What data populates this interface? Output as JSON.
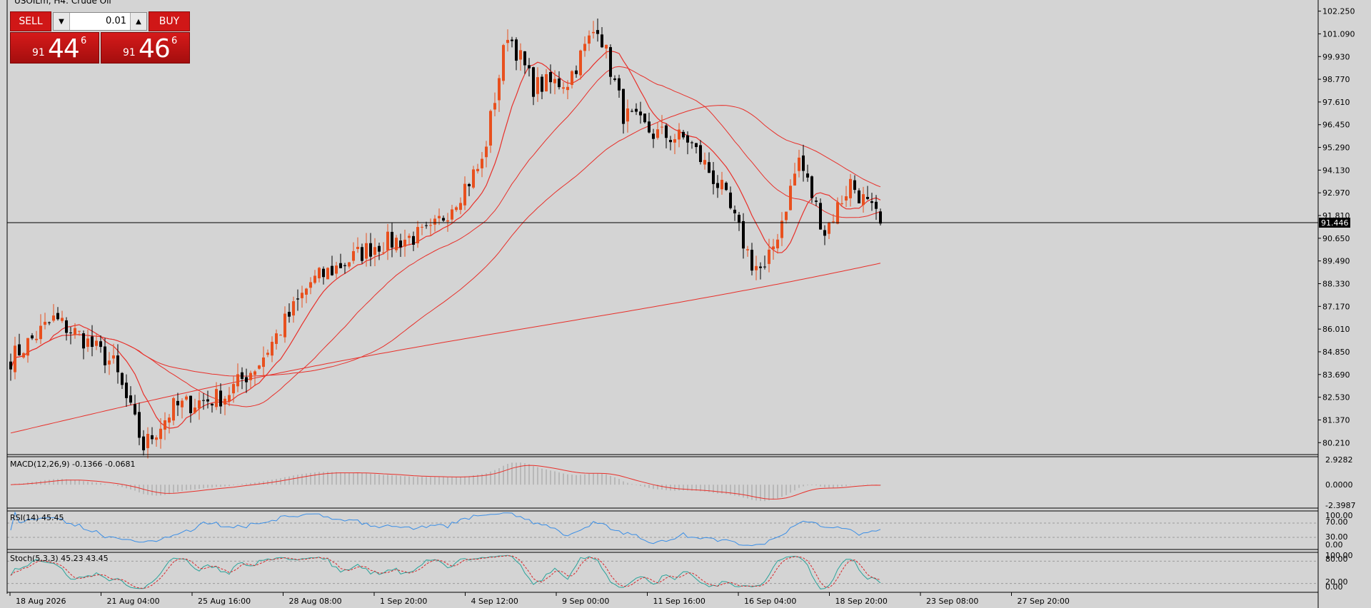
{
  "header": {
    "title": "USOILm, H4:  Crude Oil"
  },
  "trade_panel": {
    "sell_label": "SELL",
    "buy_label": "BUY",
    "lot_value": "0.01",
    "sell_price": {
      "prefix": "91",
      "big": "44",
      "sup": "6"
    },
    "buy_price": {
      "prefix": "91",
      "big": "46",
      "sup": "6"
    }
  },
  "price_axis": {
    "labels": [
      "102.250",
      "101.090",
      "99.930",
      "98.770",
      "97.610",
      "96.450",
      "95.290",
      "94.130",
      "92.970",
      "91.810",
      "90.650",
      "89.490",
      "88.330",
      "87.170",
      "86.010",
      "84.850",
      "83.690",
      "82.530",
      "81.370",
      "80.210"
    ],
    "current_price": "91.446"
  },
  "time_axis": {
    "labels": [
      "18 Aug 2026",
      "21 Aug 04:00",
      "25 Aug 16:00",
      "28 Aug 08:00",
      "1 Sep 20:00",
      "4 Sep 12:00",
      "9 Sep 00:00",
      "11 Sep 16:00",
      "16 Sep 04:00",
      "18 Sep 20:00",
      "23 Sep 08:00",
      "27 Sep 20:00"
    ]
  },
  "macd": {
    "title": "MACD(12,26,9) -0.1366 -0.0681",
    "scale": [
      "2.9282",
      "0.0000",
      "-2.3987"
    ]
  },
  "rsi": {
    "title": "RSI(14) 45.45",
    "scale": [
      "100.00",
      "70.00",
      "30.00",
      "0.00"
    ]
  },
  "stoch": {
    "title": "Stoch(5,3,3) 45.23 43.45",
    "scale": [
      "100.00",
      "80.00",
      "20.00",
      "0.00"
    ]
  },
  "colors": {
    "background": "#d4d4d4",
    "bull": "#e8501e",
    "bear": "#000000",
    "ma": "#e8302a",
    "rsi": "#3a8ee6",
    "stoch_main": "#2aa39a",
    "stoch_signal": "#d8262a",
    "histogram": "#b8b8b8"
  },
  "chart_data": {
    "type": "candlestick",
    "symbol": "USOILm",
    "timeframe": "H4",
    "ylim": [
      79.6,
      102.6
    ],
    "anchors": [
      {
        "i": 0,
        "close": 84.5
      },
      {
        "i": 10,
        "close": 86.5
      },
      {
        "i": 16,
        "close": 85.7
      },
      {
        "i": 24,
        "close": 84.2
      },
      {
        "i": 31,
        "close": 80.0
      },
      {
        "i": 38,
        "close": 82.0
      },
      {
        "i": 50,
        "close": 82.6
      },
      {
        "i": 58,
        "close": 84.3
      },
      {
        "i": 70,
        "close": 88.4
      },
      {
        "i": 85,
        "close": 90.3
      },
      {
        "i": 98,
        "close": 90.9
      },
      {
        "i": 110,
        "close": 94.5
      },
      {
        "i": 116,
        "close": 101.2
      },
      {
        "i": 122,
        "close": 98.4
      },
      {
        "i": 130,
        "close": 98.7
      },
      {
        "i": 137,
        "close": 101.6
      },
      {
        "i": 143,
        "close": 97.0
      },
      {
        "i": 150,
        "close": 96.0
      },
      {
        "i": 158,
        "close": 95.7
      },
      {
        "i": 166,
        "close": 93.1
      },
      {
        "i": 173,
        "close": 89.4
      },
      {
        "i": 176,
        "close": 88.9
      },
      {
        "i": 180,
        "close": 91.6
      },
      {
        "i": 184,
        "close": 94.7
      },
      {
        "i": 190,
        "close": 91.0
      },
      {
        "i": 196,
        "close": 93.5
      },
      {
        "i": 203,
        "close": 91.4
      }
    ]
  }
}
